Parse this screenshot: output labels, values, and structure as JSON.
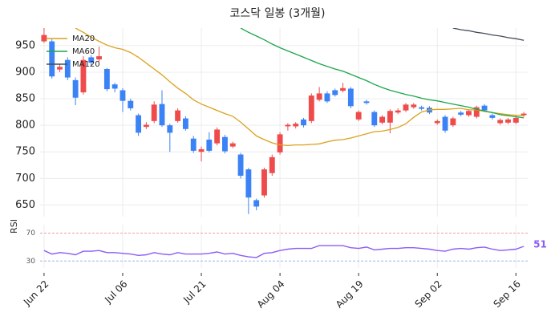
{
  "chart_data": [
    {
      "type": "candlestick",
      "title": "코스닥 일봉 (3개월)",
      "categories": [
        "Jun 22",
        null,
        null,
        null,
        null,
        null,
        null,
        null,
        null,
        null,
        "Jul 06",
        null,
        null,
        null,
        null,
        null,
        null,
        null,
        null,
        null,
        "Jul 21",
        null,
        null,
        null,
        null,
        null,
        null,
        null,
        null,
        null,
        "Aug 04",
        null,
        null,
        null,
        null,
        null,
        null,
        null,
        null,
        null,
        "Aug 19",
        null,
        null,
        null,
        null,
        null,
        null,
        null,
        null,
        null,
        "Sep 02",
        null,
        null,
        null,
        null,
        null,
        null,
        null,
        null,
        null,
        "Sep 16",
        null
      ],
      "open": [
        958,
        958,
        905,
        923,
        885,
        862,
        928,
        924,
        906,
        877,
        866,
        846,
        819,
        797,
        808,
        840,
        800,
        808,
        813,
        775,
        750,
        773,
        766,
        778,
        760,
        745,
        717,
        659,
        668,
        710,
        749,
        798,
        798,
        811,
        808,
        848,
        860,
        866,
        865,
        869,
        811,
        845,
        825,
        805,
        805,
        824,
        828,
        834,
        834,
        833,
        804,
        816,
        800,
        824,
        819,
        816,
        837,
        819,
        804,
        805,
        805,
        819
      ],
      "high": [
        985,
        962,
        915,
        928,
        890,
        930,
        932,
        948,
        908,
        880,
        870,
        850,
        822,
        806,
        845,
        866,
        803,
        832,
        817,
        780,
        760,
        787,
        796,
        782,
        769,
        748,
        720,
        662,
        720,
        745,
        787,
        804,
        806,
        814,
        860,
        872,
        864,
        869,
        880,
        872,
        828,
        848,
        828,
        819,
        830,
        832,
        842,
        842,
        837,
        836,
        811,
        819,
        816,
        827,
        830,
        837,
        840,
        822,
        813,
        814,
        818,
        825
      ],
      "low": [
        955,
        888,
        900,
        885,
        838,
        858,
        912,
        920,
        864,
        862,
        825,
        828,
        780,
        793,
        804,
        797,
        750,
        805,
        790,
        748,
        732,
        749,
        762,
        747,
        757,
        700,
        633,
        640,
        664,
        705,
        745,
        790,
        794,
        796,
        804,
        845,
        842,
        854,
        862,
        832,
        808,
        839,
        797,
        802,
        785,
        821,
        825,
        831,
        828,
        821,
        801,
        786,
        797,
        817,
        816,
        813,
        825,
        811,
        801,
        802,
        802,
        816
      ],
      "close": [
        970,
        892,
        910,
        890,
        852,
        923,
        918,
        930,
        868,
        869,
        846,
        832,
        786,
        801,
        839,
        800,
        786,
        828,
        793,
        752,
        755,
        752,
        792,
        751,
        766,
        705,
        664,
        647,
        717,
        740,
        783,
        801,
        803,
        800,
        856,
        860,
        845,
        857,
        870,
        836,
        825,
        842,
        800,
        816,
        827,
        828,
        839,
        839,
        831,
        824,
        808,
        790,
        813,
        820,
        827,
        834,
        828,
        814,
        810,
        811,
        814,
        822
      ],
      "up_color": "#ef4b4b",
      "down_color": "#3b82f6",
      "lines": [
        {
          "name": "MA20",
          "color": "#dba21c",
          "values": [
            null,
            null,
            null,
            null,
            983,
            975,
            966,
            958,
            951,
            946,
            943,
            937,
            928,
            917,
            906,
            895,
            882,
            870,
            860,
            848,
            840,
            834,
            828,
            822,
            817,
            806,
            793,
            780,
            773,
            767,
            763,
            762,
            763,
            763,
            764,
            765,
            769,
            772,
            773,
            776,
            780,
            784,
            788,
            789,
            792,
            796,
            803,
            815,
            825,
            829,
            830,
            830,
            831,
            832,
            829,
            829,
            826,
            824,
            822,
            820,
            819,
            818
          ]
        },
        {
          "name": "MA60",
          "color": "#1aa64a",
          "values": [
            null,
            null,
            null,
            null,
            null,
            null,
            null,
            null,
            null,
            null,
            null,
            null,
            null,
            null,
            null,
            null,
            null,
            null,
            null,
            null,
            null,
            null,
            null,
            null,
            null,
            983,
            975,
            968,
            961,
            953,
            946,
            940,
            934,
            928,
            922,
            916,
            911,
            906,
            902,
            896,
            890,
            884,
            877,
            871,
            866,
            862,
            858,
            855,
            851,
            848,
            846,
            843,
            840,
            837,
            834,
            830,
            827,
            824,
            820,
            818,
            816,
            814
          ]
        },
        {
          "name": "MA120",
          "color": "#454c59",
          "values": [
            null,
            null,
            null,
            null,
            null,
            null,
            null,
            null,
            null,
            null,
            null,
            null,
            null,
            null,
            null,
            null,
            null,
            null,
            null,
            null,
            null,
            null,
            null,
            null,
            null,
            null,
            null,
            null,
            null,
            null,
            null,
            null,
            null,
            null,
            null,
            null,
            null,
            null,
            null,
            null,
            null,
            null,
            null,
            null,
            null,
            null,
            null,
            null,
            null,
            null,
            null,
            null,
            983,
            980,
            978,
            975,
            973,
            970,
            968,
            965,
            963,
            960
          ]
        }
      ],
      "ylim": [
        628,
        983
      ],
      "yticks": [
        650,
        700,
        750,
        800,
        850,
        900,
        950
      ],
      "grid": true,
      "legend": "upper left"
    },
    {
      "type": "line",
      "y_label": "RSI",
      "color": "#8b5cf6",
      "values": [
        45,
        40,
        42,
        41,
        39,
        44,
        44,
        45,
        42,
        42,
        41,
        40,
        38,
        39,
        42,
        40,
        39,
        42,
        40,
        40,
        40,
        41,
        43,
        40,
        41,
        38,
        36,
        35,
        41,
        42,
        45,
        47,
        48,
        48,
        48,
        52,
        52,
        52,
        52,
        49,
        48,
        50,
        46,
        47,
        48,
        48,
        49,
        49,
        48,
        47,
        45,
        44,
        47,
        48,
        47,
        49,
        50,
        47,
        45,
        46,
        47,
        51
      ],
      "ylim": [
        20,
        82
      ],
      "yticks": [
        30,
        70
      ],
      "ytick_colors": [
        "#9ab8e8",
        "#f4a0a0"
      ]
    }
  ]
}
